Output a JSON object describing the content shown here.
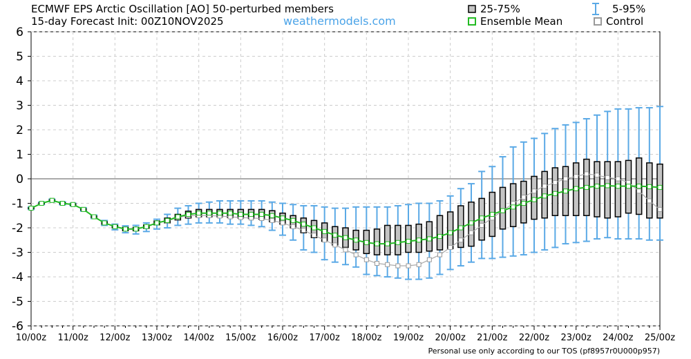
{
  "chart_data": {
    "type": "ensemble-box",
    "title": "ECMWF EPS Arctic Oscillation [AO]  50-perturbed members",
    "subtitle": "15-day Forecast Init: 00Z10NOV2025",
    "source": "weathermodels.com",
    "footer": "Personal use only according to our TOS (pf8957r0U000p957)",
    "categories": [
      "10/00z",
      null,
      null,
      null,
      "11/00z",
      null,
      null,
      null,
      "12/00z",
      null,
      null,
      null,
      "13/00z",
      null,
      null,
      null,
      "14/00z",
      null,
      null,
      null,
      "15/00z",
      null,
      null,
      null,
      "16/00z",
      null,
      null,
      null,
      "17/00z",
      null,
      null,
      null,
      "18/00z",
      null,
      null,
      null,
      "19/00z",
      null,
      null,
      null,
      "20/00z",
      null,
      null,
      null,
      "21/00z",
      null,
      null,
      null,
      "22/00z",
      null,
      null,
      null,
      "23/00z",
      null,
      null,
      null,
      "24/00z",
      null,
      null,
      null,
      "25/00z"
    ],
    "ylim": [
      -6,
      6
    ],
    "yticks": [
      -6,
      -5,
      -4,
      -3,
      -2,
      -1,
      0,
      1,
      2,
      3,
      4,
      5,
      6
    ],
    "grid": true,
    "boxes": {
      "name": "25-75%",
      "color": "#c4c4c4",
      "low": [
        -1.22,
        -1.02,
        -0.9,
        -1.03,
        -1.08,
        -1.28,
        -1.58,
        -1.85,
        -2.0,
        -2.12,
        -2.12,
        -2.02,
        -1.88,
        -1.8,
        -1.68,
        -1.6,
        -1.55,
        -1.55,
        -1.55,
        -1.58,
        -1.6,
        -1.62,
        -1.65,
        -1.75,
        -1.85,
        -2.0,
        -2.2,
        -2.4,
        -2.55,
        -2.7,
        -2.8,
        -2.9,
        -3.05,
        -3.1,
        -3.1,
        -3.1,
        -3.0,
        -3.0,
        -2.95,
        -2.9,
        -2.85,
        -2.8,
        -2.75,
        -2.5,
        -2.35,
        -2.05,
        -1.95,
        -1.8,
        -1.65,
        -1.6,
        -1.5,
        -1.5,
        -1.5,
        -1.5,
        -1.55,
        -1.6,
        -1.55,
        -1.4,
        -1.45,
        -1.6,
        -1.6
      ],
      "high": [
        -1.18,
        -0.98,
        -0.86,
        -0.97,
        -1.02,
        -1.22,
        -1.52,
        -1.75,
        -1.9,
        -1.98,
        -1.98,
        -1.88,
        -1.72,
        -1.6,
        -1.45,
        -1.32,
        -1.25,
        -1.25,
        -1.25,
        -1.25,
        -1.25,
        -1.25,
        -1.25,
        -1.3,
        -1.4,
        -1.5,
        -1.6,
        -1.7,
        -1.8,
        -1.95,
        -2.0,
        -2.1,
        -2.1,
        -2.05,
        -1.9,
        -1.9,
        -1.9,
        -1.85,
        -1.75,
        -1.5,
        -1.35,
        -1.1,
        -0.95,
        -0.8,
        -0.55,
        -0.35,
        -0.2,
        -0.1,
        0.1,
        0.3,
        0.45,
        0.5,
        0.65,
        0.8,
        0.7,
        0.7,
        0.7,
        0.75,
        0.85,
        0.65,
        0.6
      ]
    },
    "whiskers": {
      "name": "5-95%",
      "color": "#5aa9e6",
      "low": [
        -1.25,
        -1.05,
        -0.93,
        -1.06,
        -1.1,
        -1.32,
        -1.62,
        -1.9,
        -2.08,
        -2.2,
        -2.25,
        -2.15,
        -2.05,
        -2.0,
        -1.9,
        -1.85,
        -1.8,
        -1.8,
        -1.8,
        -1.85,
        -1.85,
        -1.9,
        -1.95,
        -2.1,
        -2.3,
        -2.5,
        -2.9,
        -3.0,
        -3.3,
        -3.4,
        -3.5,
        -3.6,
        -3.9,
        -3.95,
        -4.0,
        -4.05,
        -4.1,
        -4.1,
        -4.05,
        -3.9,
        -3.7,
        -3.55,
        -3.4,
        -3.25,
        -3.25,
        -3.2,
        -3.15,
        -3.1,
        -3.0,
        -2.9,
        -2.8,
        -2.65,
        -2.6,
        -2.55,
        -2.45,
        -2.4,
        -2.45,
        -2.45,
        -2.45,
        -2.5,
        -2.5
      ],
      "high": [
        -1.15,
        -0.95,
        -0.83,
        -0.94,
        -1.0,
        -1.18,
        -1.48,
        -1.7,
        -1.85,
        -1.92,
        -1.9,
        -1.8,
        -1.65,
        -1.45,
        -1.2,
        -1.1,
        -1.0,
        -0.95,
        -0.9,
        -0.9,
        -0.9,
        -0.9,
        -0.9,
        -0.95,
        -1.0,
        -1.05,
        -1.1,
        -1.1,
        -1.15,
        -1.2,
        -1.2,
        -1.15,
        -1.15,
        -1.15,
        -1.15,
        -1.1,
        -1.05,
        -1.0,
        -1.0,
        -0.9,
        -0.7,
        -0.4,
        -0.2,
        0.3,
        0.5,
        0.9,
        1.3,
        1.5,
        1.65,
        1.85,
        2.05,
        2.2,
        2.3,
        2.45,
        2.6,
        2.75,
        2.85,
        2.85,
        2.9,
        2.9,
        2.95
      ]
    },
    "series": [
      {
        "name": "Ensemble Mean",
        "color": "#22bb22",
        "values": [
          -1.2,
          -1.0,
          -0.88,
          -1.0,
          -1.05,
          -1.25,
          -1.55,
          -1.8,
          -1.95,
          -2.05,
          -2.05,
          -1.95,
          -1.8,
          -1.7,
          -1.55,
          -1.45,
          -1.4,
          -1.4,
          -1.4,
          -1.4,
          -1.45,
          -1.45,
          -1.45,
          -1.5,
          -1.6,
          -1.7,
          -1.85,
          -2.0,
          -2.15,
          -2.3,
          -2.4,
          -2.5,
          -2.6,
          -2.65,
          -2.65,
          -2.6,
          -2.55,
          -2.5,
          -2.45,
          -2.35,
          -2.2,
          -2.0,
          -1.8,
          -1.6,
          -1.45,
          -1.3,
          -1.15,
          -1.0,
          -0.85,
          -0.7,
          -0.6,
          -0.5,
          -0.4,
          -0.35,
          -0.3,
          -0.28,
          -0.3,
          -0.3,
          -0.3,
          -0.32,
          -0.35
        ]
      },
      {
        "name": "Control",
        "color": "#999999",
        "values": [
          -1.2,
          -1.0,
          -0.88,
          -1.0,
          -1.05,
          -1.25,
          -1.55,
          -1.8,
          -1.95,
          -2.05,
          -2.05,
          -1.95,
          -1.8,
          -1.72,
          -1.58,
          -1.5,
          -1.5,
          -1.5,
          -1.52,
          -1.55,
          -1.58,
          -1.6,
          -1.62,
          -1.7,
          -1.8,
          -1.95,
          -2.1,
          -2.3,
          -2.5,
          -2.7,
          -2.9,
          -3.1,
          -3.3,
          -3.45,
          -3.5,
          -3.55,
          -3.55,
          -3.5,
          -3.3,
          -3.1,
          -2.8,
          -2.5,
          -2.2,
          -1.9,
          -1.6,
          -1.3,
          -1.0,
          -0.75,
          -0.5,
          -0.3,
          -0.15,
          0.0,
          0.1,
          0.2,
          0.15,
          0.05,
          0.0,
          -0.15,
          -0.5,
          -0.9,
          -1.25
        ]
      }
    ]
  }
}
